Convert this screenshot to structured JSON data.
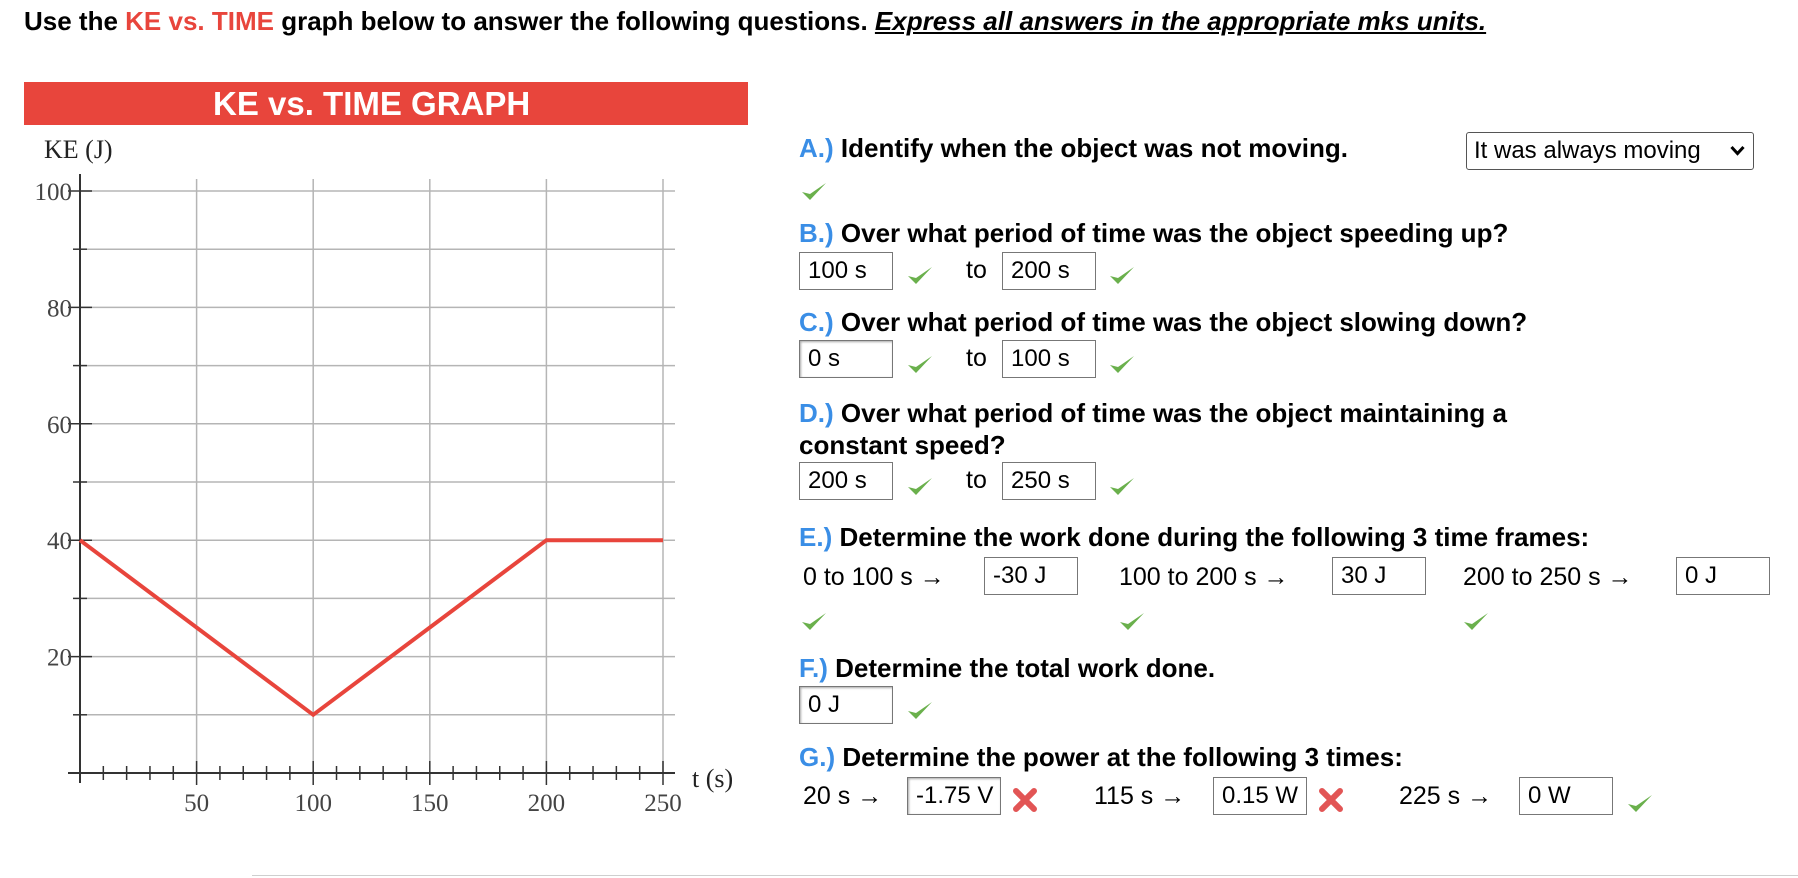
{
  "header": {
    "prefix": "Use the ",
    "highlight": "KE vs. TIME",
    "middle": " graph below to answer the following questions. ",
    "emphasis": "Express all answers in the appropriate mks units."
  },
  "chart_data": {
    "type": "line",
    "title": "KE vs. TIME GRAPH",
    "ylabel": "KE (J)",
    "xlabel": "t (s)",
    "xlim": [
      0,
      250
    ],
    "ylim": [
      0,
      100
    ],
    "x_ticks": [
      50,
      100,
      150,
      200,
      250
    ],
    "y_ticks": [
      20,
      40,
      60,
      80,
      100
    ],
    "grid": true,
    "line_color": "#e8453c",
    "series": [
      {
        "x": [
          0,
          100,
          200,
          250
        ],
        "y": [
          40,
          10,
          40,
          40
        ]
      }
    ]
  },
  "questions": {
    "a": {
      "letter": "A.)",
      "text": " Identify when the object was not moving.",
      "select_value": "It was always moving",
      "status": "correct"
    },
    "b": {
      "letter": "B.)",
      "text": " Over what period of time was the object speeding up?",
      "from": "100 s",
      "to_label": "to",
      "to": "200 s"
    },
    "c": {
      "letter": "C.)",
      "text": " Over what period of time was the object slowing down?",
      "from": "0 s",
      "to_label": "to",
      "to": "100 s"
    },
    "d": {
      "letter": "D.)",
      "text_line1": " Over what period of time was the object maintaining a",
      "text_line2": "constant speed?",
      "from": "200 s",
      "to_label": "to",
      "to": "250 s"
    },
    "e": {
      "letter": "E.)",
      "text": " Determine the work done during the following 3 time frames:",
      "items": [
        {
          "label": "0 to 100 s →",
          "value": "-30 J"
        },
        {
          "label": "100 to 200 s →",
          "value": "30 J"
        },
        {
          "label": "200 to 250 s →",
          "value": "0 J"
        }
      ]
    },
    "f": {
      "letter": "F.)",
      "text": " Determine the total work done.",
      "value": "0 J"
    },
    "g": {
      "letter": "G.)",
      "text": " Determine the power at the following 3 times:",
      "items": [
        {
          "label": "20 s →",
          "value": "-1.75 V",
          "status": "incorrect"
        },
        {
          "label": "115 s →",
          "value": "0.15 W",
          "status": "incorrect"
        },
        {
          "label": "225 s →",
          "value": "0 W",
          "status": "correct"
        }
      ]
    }
  },
  "colors": {
    "accent_red": "#e8453c",
    "letter_blue": "#3a8ee6",
    "check_green": "#6ab04c",
    "cross_red": "#e25555"
  }
}
